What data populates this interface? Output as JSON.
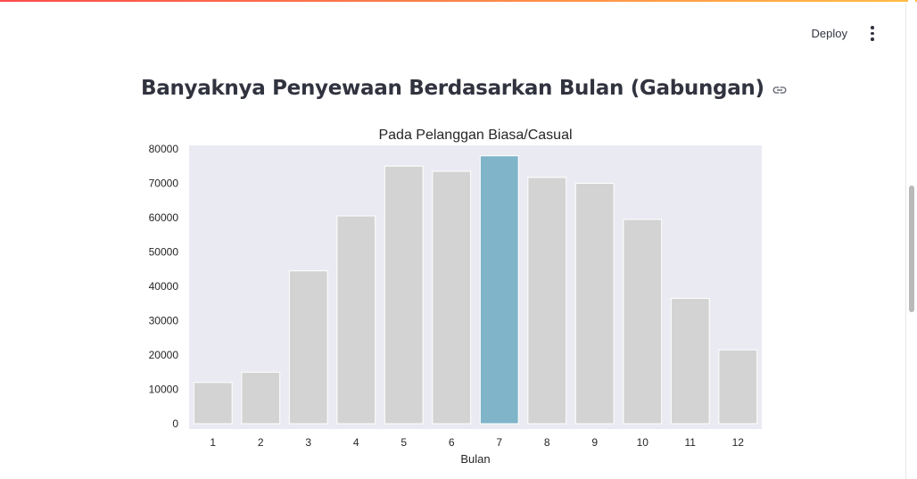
{
  "header": {
    "deploy_label": "Deploy",
    "menu_icon": "kebab-menu-icon"
  },
  "page": {
    "title": "Banyaknya Penyewaan Berdasarkan Bulan (Gabungan)",
    "anchor_icon": "link-icon"
  },
  "colors": {
    "bar_default": "#d3d3d3",
    "bar_highlight": "#7fb4c9",
    "plot_background": "#eaeaf2",
    "text": "#31333f",
    "tick_text": "#262626"
  },
  "chart_data": {
    "type": "bar",
    "title": "Pada Pelanggan Biasa/Casual",
    "xlabel": "Bulan",
    "ylabel": "",
    "categories": [
      "1",
      "2",
      "3",
      "4",
      "5",
      "6",
      "7",
      "8",
      "9",
      "10",
      "11",
      "12"
    ],
    "values": [
      12000,
      15000,
      44500,
      60500,
      75000,
      73500,
      78000,
      71700,
      70000,
      59500,
      36500,
      21500
    ],
    "highlight_category": "7",
    "ylim": [
      0,
      80000
    ],
    "yticks": [
      0,
      10000,
      20000,
      30000,
      40000,
      50000,
      60000,
      70000,
      80000
    ],
    "grid": false,
    "legend": "none"
  }
}
